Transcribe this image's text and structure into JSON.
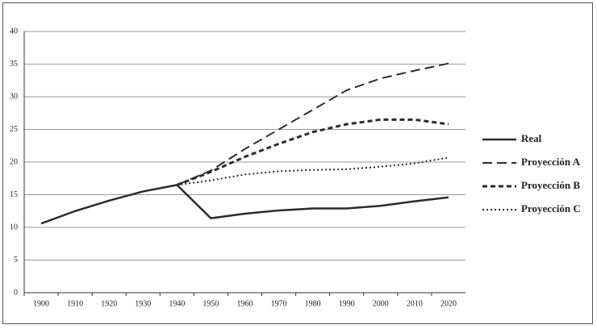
{
  "chart_data": {
    "type": "line",
    "categories": [
      "1900",
      "1910",
      "1920",
      "1930",
      "1940",
      "1950",
      "1960",
      "1970",
      "1980",
      "1990",
      "2000",
      "2010",
      "2020"
    ],
    "ylim": [
      0,
      40
    ],
    "yticks": [
      0,
      5,
      10,
      15,
      20,
      25,
      30,
      35,
      40
    ],
    "grid": true,
    "legend": "right",
    "series": [
      {
        "name": "Real",
        "color": "#2b2b2b",
        "dash": "solid",
        "values": [
          10.6,
          12.5,
          14.1,
          15.5,
          16.5,
          11.4,
          12.1,
          12.6,
          12.9,
          12.9,
          13.3,
          14.0,
          14.6
        ]
      },
      {
        "name": "Proyección A",
        "color": "#2b2b2b",
        "dash": "long-dash",
        "values": [
          null,
          null,
          null,
          null,
          16.5,
          18.7,
          22.0,
          25.0,
          28.0,
          31.0,
          32.8,
          34.0,
          35.1
        ]
      },
      {
        "name": "Proyección B",
        "color": "#2b2b2b",
        "dash": "short-dash",
        "values": [
          null,
          null,
          null,
          null,
          16.5,
          18.5,
          20.8,
          22.8,
          24.6,
          25.8,
          26.5,
          26.5,
          25.8
        ]
      },
      {
        "name": "Proyección C",
        "color": "#2b2b2b",
        "dash": "dotted",
        "values": [
          null,
          null,
          null,
          null,
          16.5,
          17.2,
          18.1,
          18.6,
          18.8,
          18.9,
          19.3,
          19.8,
          20.7
        ]
      }
    ]
  }
}
